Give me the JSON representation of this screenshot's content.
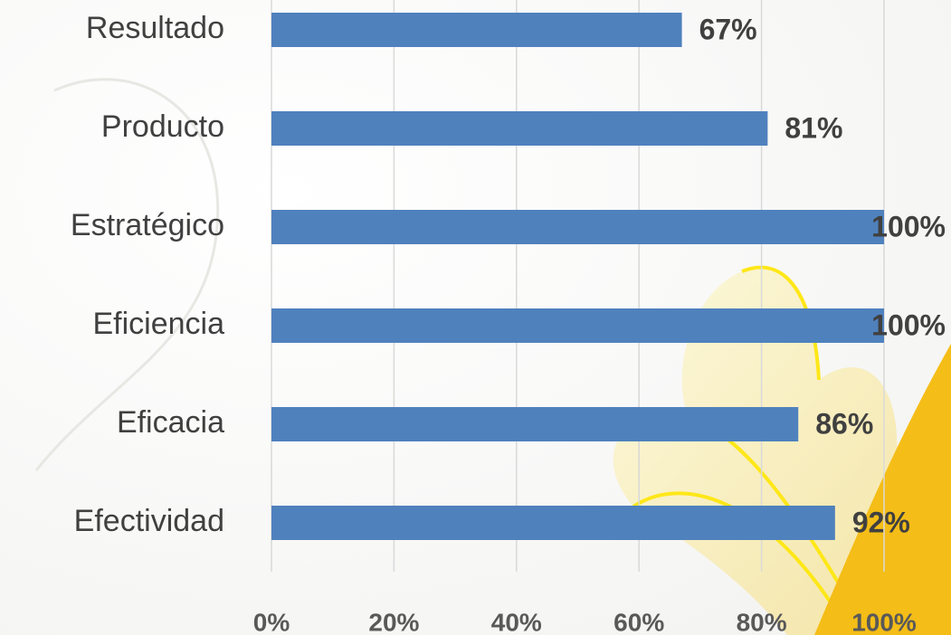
{
  "chart_data": {
    "type": "bar",
    "orientation": "horizontal",
    "categories": [
      "Resultado",
      "Producto",
      "Estratégico",
      "Eficiencia",
      "Eficacia",
      "Efectividad"
    ],
    "values": [
      67,
      81,
      100,
      100,
      86,
      92
    ],
    "value_labels": [
      "67%",
      "81%",
      "100%",
      "100%",
      "86%",
      "92%"
    ],
    "color": "#4f81bd",
    "xlim": [
      0,
      100
    ],
    "xticks": [
      {
        "value": 0,
        "label": "0%"
      },
      {
        "value": 20,
        "label": "20%"
      },
      {
        "value": 40,
        "label": "40%"
      },
      {
        "value": 60,
        "label": "60%"
      },
      {
        "value": 80,
        "label": "80%"
      },
      {
        "value": 100,
        "label": "100%"
      }
    ],
    "grid": true
  }
}
